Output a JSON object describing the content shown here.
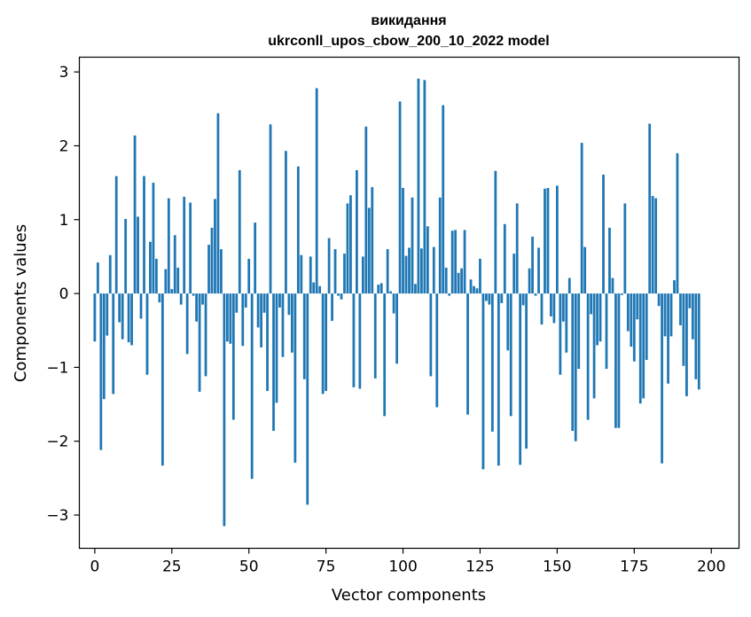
{
  "chart_data": {
    "type": "bar",
    "title_line1": "викидання",
    "title_line2": "ukrconll_upos_cbow_200_10_2022 model",
    "xlabel": "Vector components",
    "ylabel": "Components values",
    "xlim": [
      -5,
      209
    ],
    "ylim": [
      -3.45,
      3.2
    ],
    "x_ticks": [
      0,
      25,
      50,
      75,
      100,
      125,
      150,
      175,
      200
    ],
    "x_tick_labels": [
      "0",
      "25",
      "50",
      "75",
      "100",
      "125",
      "150",
      "175",
      "200"
    ],
    "y_ticks": [
      -3,
      -2,
      -1,
      0,
      1,
      2,
      3
    ],
    "y_tick_labels": [
      "−3",
      "−2",
      "−1",
      "0",
      "1",
      "2",
      "3"
    ],
    "bar_color": "#1f77b4",
    "grid": false,
    "values": [
      -0.65,
      0.42,
      -2.12,
      -1.43,
      -0.57,
      0.52,
      -1.36,
      1.59,
      -0.39,
      -0.62,
      1.01,
      -0.66,
      -0.7,
      2.14,
      1.04,
      -0.34,
      1.59,
      -1.1,
      0.7,
      1.5,
      0.47,
      -0.12,
      -2.33,
      0.33,
      1.29,
      0.06,
      0.79,
      0.35,
      -0.15,
      1.31,
      -0.82,
      1.23,
      -0.03,
      -0.38,
      -1.33,
      -0.15,
      -1.12,
      0.66,
      0.89,
      1.28,
      2.44,
      0.6,
      -3.15,
      -0.65,
      -0.68,
      -1.71,
      -0.26,
      1.67,
      -0.71,
      -0.19,
      0.47,
      -2.51,
      0.96,
      -0.46,
      -0.73,
      -0.26,
      -1.32,
      2.29,
      -1.86,
      -1.48,
      -0.19,
      -0.86,
      1.93,
      -0.29,
      -0.8,
      -2.29,
      1.72,
      0.52,
      -1.16,
      -2.86,
      0.5,
      0.15,
      2.78,
      0.1,
      -1.36,
      -1.32,
      0.75,
      -0.37,
      0.6,
      -0.03,
      -0.08,
      0.54,
      1.22,
      1.33,
      -1.27,
      1.67,
      -1.29,
      0.5,
      2.26,
      1.16,
      1.44,
      -1.15,
      0.12,
      0.14,
      -1.66,
      0.6,
      0.03,
      -0.27,
      -0.95,
      2.6,
      1.43,
      0.51,
      0.62,
      1.3,
      0.13,
      2.91,
      0.61,
      2.89,
      0.91,
      -1.12,
      0.63,
      -1.54,
      1.3,
      2.55,
      0.35,
      -0.03,
      0.85,
      0.86,
      0.28,
      0.34,
      0.86,
      -1.64,
      0.19,
      0.1,
      0.07,
      0.47,
      -2.38,
      -0.1,
      -0.15,
      -1.87,
      1.66,
      -2.33,
      -0.13,
      0.94,
      -0.77,
      -1.66,
      0.54,
      1.22,
      -2.32,
      -0.16,
      -2.1,
      0.34,
      0.77,
      -0.03,
      0.62,
      -0.42,
      1.42,
      1.43,
      -0.31,
      -0.4,
      1.46,
      -1.1,
      -0.38,
      -0.8,
      0.21,
      -1.86,
      -2.0,
      -1.02,
      2.04,
      0.63,
      -1.71,
      -0.28,
      -1.42,
      -0.7,
      -0.65,
      1.61,
      -1.02,
      0.89,
      0.21,
      -1.82,
      -1.82,
      -0.02,
      1.22,
      -0.51,
      -0.72,
      -0.92,
      -0.35,
      -1.49,
      -1.42,
      -0.9,
      2.3,
      1.32,
      1.29,
      -0.17,
      -2.3,
      -0.58,
      -1.22,
      -0.58,
      0.18,
      1.9,
      -0.43,
      -0.98,
      -1.39,
      -0.2,
      -0.62,
      -1.16,
      -1.3
    ]
  }
}
